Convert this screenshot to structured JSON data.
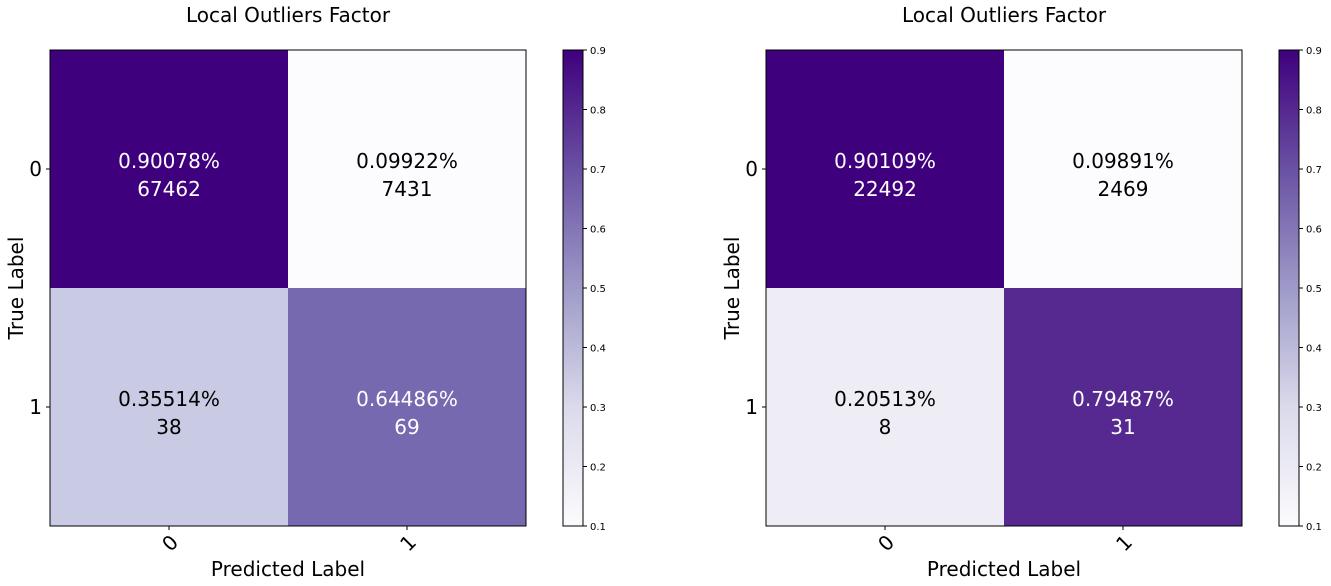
{
  "chart_data": [
    {
      "type": "heatmap",
      "title": "Local Outliers Factor",
      "xlabel": "Predicted Label",
      "ylabel": "True Label",
      "x_categories": [
        "0",
        "1"
      ],
      "y_categories": [
        "0",
        "1"
      ],
      "values": [
        [
          0.90078,
          0.09922
        ],
        [
          0.35514,
          0.64486
        ]
      ],
      "cell_labels": [
        [
          "0.90078%",
          "0.09922%"
        ],
        [
          "0.35514%",
          "0.64486%"
        ]
      ],
      "counts": [
        [
          "67462",
          "7431"
        ],
        [
          "38",
          "69"
        ]
      ],
      "colorbar": {
        "range": [
          0.1,
          0.9
        ],
        "ticks": [
          "0.1",
          "0.2",
          "0.3",
          "0.4",
          "0.5",
          "0.6",
          "0.7",
          "0.8",
          "0.9"
        ],
        "colormap": "Purples"
      },
      "grid": false
    },
    {
      "type": "heatmap",
      "title": "Local Outliers Factor",
      "xlabel": "Predicted Label",
      "ylabel": "True Label",
      "x_categories": [
        "0",
        "1"
      ],
      "y_categories": [
        "0",
        "1"
      ],
      "values": [
        [
          0.90109,
          0.09891
        ],
        [
          0.20513,
          0.79487
        ]
      ],
      "cell_labels": [
        [
          "0.90109%",
          "0.09891%"
        ],
        [
          "0.20513%",
          "0.79487%"
        ]
      ],
      "counts": [
        [
          "22492",
          "2469"
        ],
        [
          "8",
          "31"
        ]
      ],
      "colorbar": {
        "range": [
          0.1,
          0.9
        ],
        "ticks": [
          "0.1",
          "0.2",
          "0.3",
          "0.4",
          "0.5",
          "0.6",
          "0.7",
          "0.8",
          "0.9"
        ],
        "colormap": "Purples"
      },
      "grid": false
    }
  ]
}
